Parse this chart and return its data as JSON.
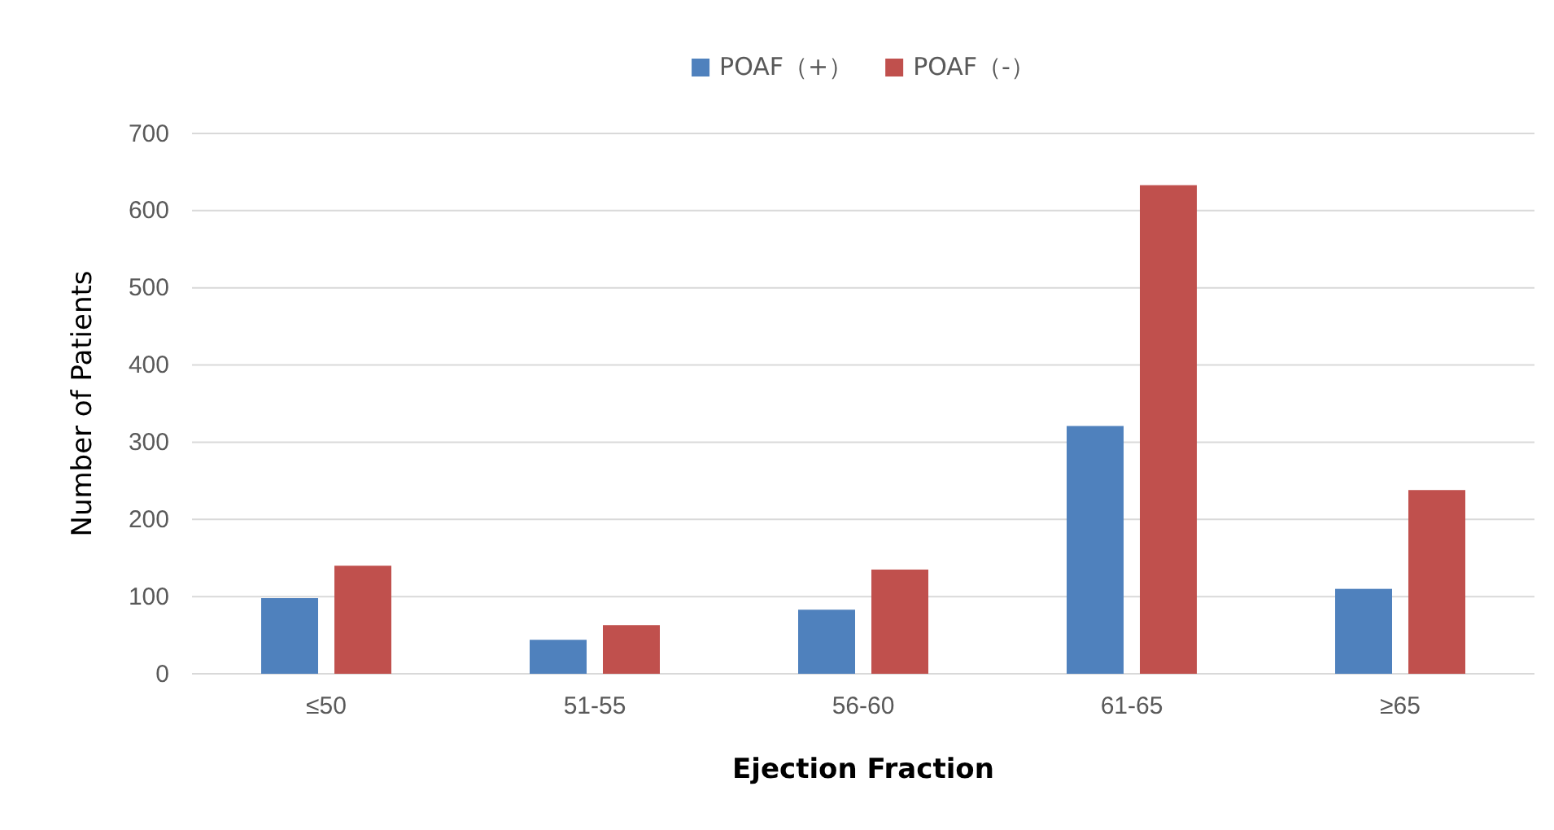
{
  "chart_data": {
    "type": "bar",
    "xlabel": "Ejection Fraction",
    "ylabel": "Number  of  Patients",
    "categories": [
      "≤50",
      "51-55",
      "56-60",
      "61-65",
      "≥65"
    ],
    "series": [
      {
        "name": "POAF（+）",
        "color": "#4f81bd",
        "values": [
          98,
          44,
          83,
          321,
          110
        ]
      },
      {
        "name": "POAF（-）",
        "color": "#c0504d",
        "values": [
          140,
          63,
          135,
          633,
          238
        ]
      }
    ],
    "ylim": [
      0,
      700
    ],
    "yticks": [
      0,
      100,
      200,
      300,
      400,
      500,
      600,
      700
    ],
    "grid": "y",
    "legend": "top"
  }
}
